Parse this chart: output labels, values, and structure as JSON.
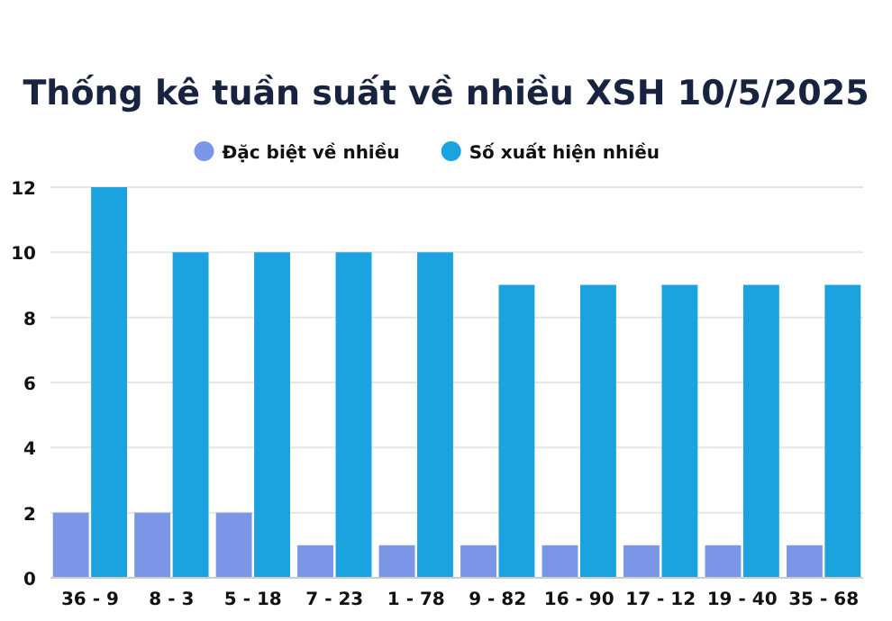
{
  "chart_data": {
    "type": "bar",
    "title": "Thống kê tuần suất về nhiều XSH 10/5/2025",
    "categories": [
      "36 - 9",
      "8 - 3",
      "5 - 18",
      "7 - 23",
      "1 - 78",
      "9 - 82",
      "16 - 90",
      "17 - 12",
      "19 - 40",
      "35 - 68"
    ],
    "series": [
      {
        "name": "Đặc biệt về nhiều",
        "color": "#7b96e6",
        "values": [
          2,
          2,
          2,
          1,
          1,
          1,
          1,
          1,
          1,
          1
        ]
      },
      {
        "name": "Số xuất hiện nhiều",
        "color": "#1ba3e0",
        "values": [
          12,
          10,
          10,
          10,
          10,
          9,
          9,
          9,
          9,
          9
        ]
      }
    ],
    "ylim": [
      0,
      12
    ],
    "yticks": [
      0,
      2,
      4,
      6,
      8,
      10,
      12
    ],
    "grid": "y",
    "legend": "top"
  }
}
